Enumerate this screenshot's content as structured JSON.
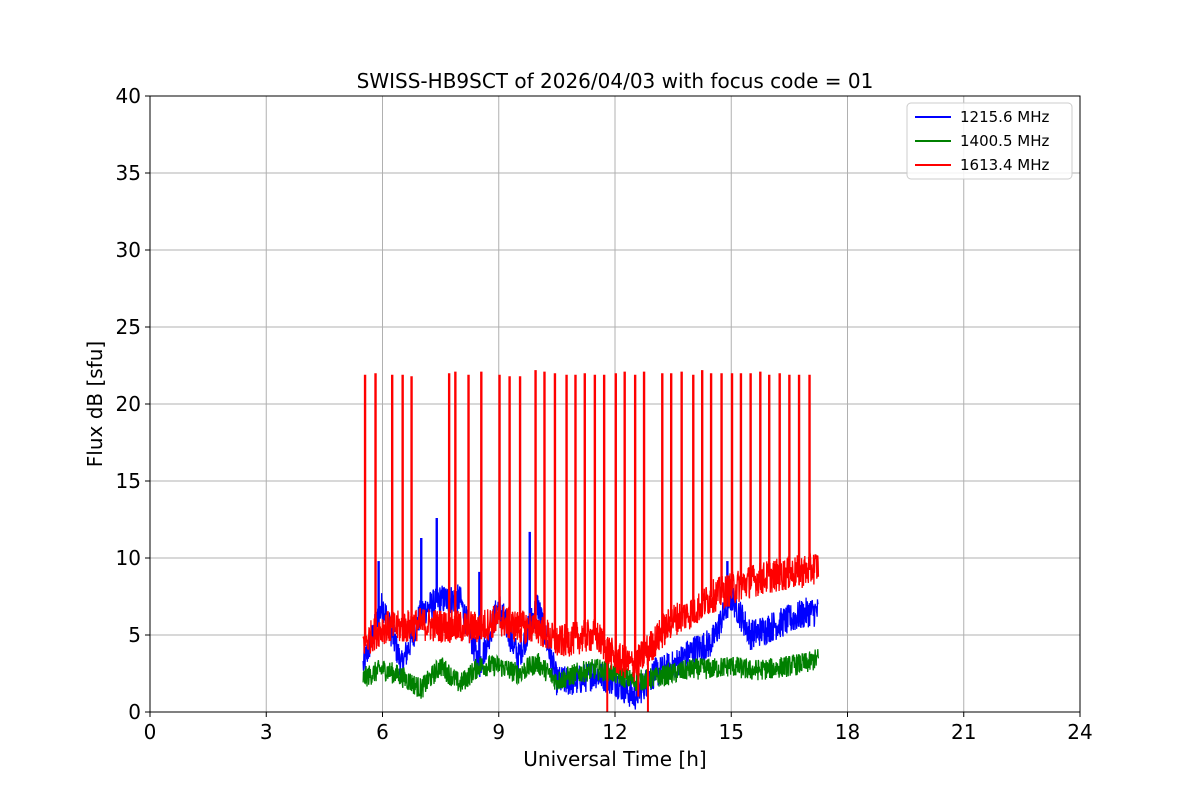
{
  "chart_data": {
    "type": "line",
    "title": "SWISS-HB9SCT of 2026/04/03 with focus code = 01",
    "xlabel": "Universal Time [h]",
    "ylabel": "Flux dB [sfu]",
    "xlim": [
      0,
      24
    ],
    "ylim": [
      0,
      40
    ],
    "xticks": [
      0,
      3,
      6,
      9,
      12,
      15,
      18,
      21,
      24
    ],
    "yticks": [
      0,
      5,
      10,
      15,
      20,
      25,
      30,
      35,
      40
    ],
    "grid": true,
    "legend_position": "top-right",
    "time_range_h": [
      5.5,
      17.25
    ],
    "series": [
      {
        "name": "1215.6 MHz",
        "color": "#0000ff",
        "x": [
          5.5,
          6.0,
          6.5,
          7.0,
          7.5,
          8.0,
          8.5,
          9.0,
          9.5,
          10.0,
          10.5,
          11.0,
          11.5,
          12.0,
          12.5,
          13.0,
          13.5,
          14.0,
          14.5,
          15.0,
          15.5,
          16.0,
          16.5,
          17.0,
          17.25
        ],
        "values": [
          3.0,
          7.0,
          3.0,
          6.5,
          7.3,
          7.3,
          3.0,
          7.0,
          3.5,
          7.0,
          2.0,
          2.0,
          2.5,
          2.0,
          1.0,
          2.5,
          3.0,
          4.0,
          4.5,
          7.5,
          5.0,
          5.5,
          6.0,
          6.5,
          6.5
        ],
        "spikes": [
          {
            "x": 5.9,
            "y": 9.8
          },
          {
            "x": 7.0,
            "y": 11.3
          },
          {
            "x": 7.4,
            "y": 12.6
          },
          {
            "x": 8.5,
            "y": 9.1
          },
          {
            "x": 9.8,
            "y": 11.7
          },
          {
            "x": 14.9,
            "y": 9.8
          }
        ]
      },
      {
        "name": "1400.5 MHz",
        "color": "#008000",
        "x": [
          5.5,
          6.0,
          6.5,
          7.0,
          7.5,
          8.0,
          8.5,
          9.0,
          9.5,
          10.0,
          10.5,
          11.0,
          11.5,
          12.0,
          12.5,
          13.0,
          13.5,
          14.0,
          14.5,
          15.0,
          15.5,
          16.0,
          16.5,
          17.0,
          17.25
        ],
        "values": [
          2.2,
          2.8,
          2.3,
          1.5,
          3.0,
          1.8,
          3.0,
          3.0,
          2.5,
          3.2,
          2.0,
          2.5,
          2.8,
          2.5,
          2.0,
          2.2,
          2.5,
          2.8,
          2.8,
          3.0,
          2.7,
          2.8,
          3.0,
          3.2,
          3.5
        ]
      },
      {
        "name": "1613.4 MHz",
        "color": "#ff0000",
        "x": [
          5.5,
          6.0,
          6.5,
          7.0,
          7.5,
          8.0,
          8.5,
          9.0,
          9.5,
          10.0,
          10.5,
          11.0,
          11.5,
          12.0,
          12.5,
          13.0,
          13.5,
          14.0,
          14.5,
          15.0,
          15.5,
          16.0,
          16.5,
          17.0,
          17.25
        ],
        "values": [
          4.5,
          5.5,
          5.5,
          5.7,
          5.6,
          5.5,
          5.5,
          6.0,
          5.5,
          5.5,
          4.5,
          4.8,
          5.0,
          3.5,
          3.0,
          4.5,
          6.0,
          6.5,
          7.5,
          8.0,
          8.5,
          8.8,
          9.0,
          9.2,
          9.5
        ],
        "spikes": [
          {
            "x": 5.55,
            "y": 21.9
          },
          {
            "x": 5.82,
            "y": 22.0
          },
          {
            "x": 6.25,
            "y": 21.9
          },
          {
            "x": 6.52,
            "y": 21.9
          },
          {
            "x": 6.75,
            "y": 21.8
          },
          {
            "x": 7.72,
            "y": 22.0
          },
          {
            "x": 7.88,
            "y": 22.1
          },
          {
            "x": 8.22,
            "y": 21.9
          },
          {
            "x": 8.55,
            "y": 22.1
          },
          {
            "x": 9.02,
            "y": 21.9
          },
          {
            "x": 9.28,
            "y": 21.8
          },
          {
            "x": 9.55,
            "y": 21.8
          },
          {
            "x": 9.95,
            "y": 22.2
          },
          {
            "x": 10.18,
            "y": 22.1
          },
          {
            "x": 10.45,
            "y": 22.0
          },
          {
            "x": 10.75,
            "y": 21.9
          },
          {
            "x": 10.98,
            "y": 21.9
          },
          {
            "x": 11.22,
            "y": 22.0
          },
          {
            "x": 11.48,
            "y": 21.9
          },
          {
            "x": 11.72,
            "y": 21.9
          },
          {
            "x": 12.02,
            "y": 22.0
          },
          {
            "x": 12.25,
            "y": 22.1
          },
          {
            "x": 12.52,
            "y": 21.9
          },
          {
            "x": 12.75,
            "y": 22.1
          },
          {
            "x": 13.22,
            "y": 22.0
          },
          {
            "x": 13.45,
            "y": 22.0
          },
          {
            "x": 13.72,
            "y": 22.1
          },
          {
            "x": 14.02,
            "y": 21.9
          },
          {
            "x": 14.25,
            "y": 22.2
          },
          {
            "x": 14.48,
            "y": 22.0
          },
          {
            "x": 14.75,
            "y": 22.0
          },
          {
            "x": 15.02,
            "y": 22.0
          },
          {
            "x": 15.25,
            "y": 22.0
          },
          {
            "x": 15.5,
            "y": 22.0
          },
          {
            "x": 15.75,
            "y": 22.1
          },
          {
            "x": 15.98,
            "y": 21.9
          },
          {
            "x": 16.25,
            "y": 22.0
          },
          {
            "x": 16.5,
            "y": 21.9
          },
          {
            "x": 16.75,
            "y": 21.9
          },
          {
            "x": 17.02,
            "y": 21.9
          }
        ],
        "dips": [
          {
            "x": 11.8,
            "y": 0.0
          },
          {
            "x": 12.6,
            "y": 1.0
          },
          {
            "x": 12.85,
            "y": 0.0
          }
        ]
      }
    ]
  }
}
